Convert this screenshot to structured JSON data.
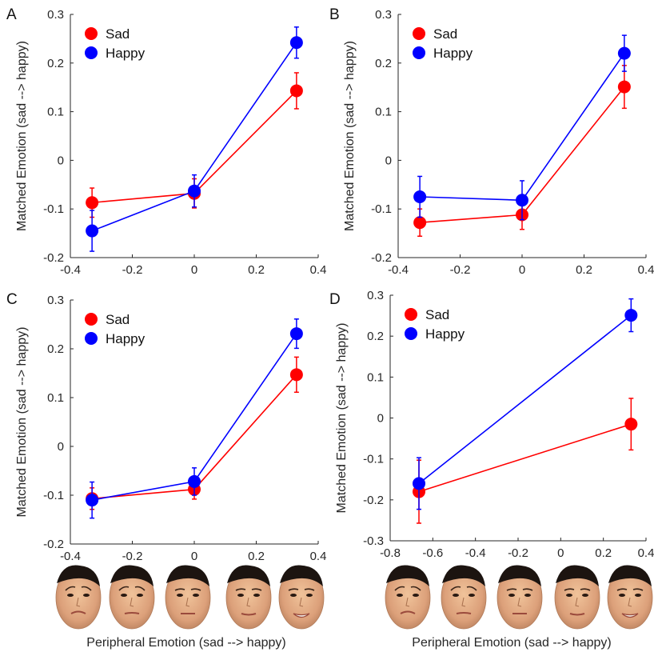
{
  "colors": {
    "Sad": "#ff0000",
    "Happy": "#0000ff",
    "axis": "#262626"
  },
  "chart_data": [
    {
      "type": "line",
      "panel_label": "A",
      "xlabel": "",
      "ylabel": "Matched Emotion (sad --> happy)",
      "xlim": [
        -0.4,
        0.4
      ],
      "ylim": [
        -0.2,
        0.3
      ],
      "xticks": [
        "-0.4",
        "-0.2",
        "0",
        "0.2",
        "0.4"
      ],
      "yticks": [
        "-0.2",
        "-0.1",
        "0",
        "0.1",
        "0.2",
        "0.3"
      ],
      "legend": "top-left",
      "series": [
        {
          "name": "Sad",
          "x": [
            -0.33,
            0.0,
            0.33
          ],
          "y": [
            -0.087,
            -0.068,
            0.143
          ],
          "err": [
            0.03,
            0.03,
            0.037
          ]
        },
        {
          "name": "Happy",
          "x": [
            -0.33,
            0.0,
            0.33
          ],
          "y": [
            -0.145,
            -0.063,
            0.242
          ],
          "err": [
            0.042,
            0.033,
            0.032
          ]
        }
      ]
    },
    {
      "type": "line",
      "panel_label": "B",
      "xlabel": "",
      "ylabel": "Matched Emotion (sad --> happy)",
      "xlim": [
        -0.4,
        0.4
      ],
      "ylim": [
        -0.2,
        0.3
      ],
      "xticks": [
        "-0.4",
        "-0.2",
        "0",
        "0.2",
        "0.4"
      ],
      "yticks": [
        "-0.2",
        "-0.1",
        "0",
        "0.1",
        "0.2",
        "0.3"
      ],
      "legend": "top-left",
      "series": [
        {
          "name": "Sad",
          "x": [
            -0.33,
            0.0,
            0.33
          ],
          "y": [
            -0.128,
            -0.112,
            0.151
          ],
          "err": [
            0.028,
            0.03,
            0.044
          ]
        },
        {
          "name": "Happy",
          "x": [
            -0.33,
            0.0,
            0.33
          ],
          "y": [
            -0.075,
            -0.082,
            0.22
          ],
          "err": [
            0.042,
            0.04,
            0.037
          ]
        }
      ]
    },
    {
      "type": "line",
      "panel_label": "C",
      "xlabel": "",
      "ylabel": "Matched Emotion (sad --> happy)",
      "xlim": [
        -0.4,
        0.4
      ],
      "ylim": [
        -0.2,
        0.3
      ],
      "xticks": [
        "-0.4",
        "-0.2",
        "0",
        "0.2",
        "0.4"
      ],
      "yticks": [
        "-0.2",
        "-0.1",
        "0",
        "0.1",
        "0.2",
        "0.3"
      ],
      "legend": "top-left",
      "series": [
        {
          "name": "Sad",
          "x": [
            -0.33,
            0.0,
            0.33
          ],
          "y": [
            -0.107,
            -0.088,
            0.147
          ],
          "err": [
            0.022,
            0.02,
            0.036
          ]
        },
        {
          "name": "Happy",
          "x": [
            -0.33,
            0.0,
            0.33
          ],
          "y": [
            -0.11,
            -0.072,
            0.231
          ],
          "err": [
            0.037,
            0.028,
            0.03
          ]
        }
      ]
    },
    {
      "type": "line",
      "panel_label": "D",
      "xlabel": "",
      "ylabel": "Matched Emotion (sad --> happy)",
      "xlim": [
        -0.8,
        0.4
      ],
      "ylim": [
        -0.3,
        0.3
      ],
      "xticks": [
        "-0.8",
        "-0.6",
        "-0.4",
        "-0.2",
        "0",
        "0.2",
        "0.4"
      ],
      "yticks": [
        "-0.3",
        "-0.2",
        "-0.1",
        "0",
        "0.1",
        "0.2",
        "0.3"
      ],
      "legend": "top-left",
      "series": [
        {
          "name": "Sad",
          "x": [
            -0.665,
            0.33
          ],
          "y": [
            -0.18,
            -0.015
          ],
          "err": [
            0.077,
            0.063
          ]
        },
        {
          "name": "Happy",
          "x": [
            -0.665,
            0.33
          ],
          "y": [
            -0.16,
            0.251
          ],
          "err": [
            0.063,
            0.04
          ]
        }
      ]
    }
  ],
  "bottom_xlabels": [
    "Peripheral Emotion (sad --> happy)",
    "Peripheral Emotion (sad --> happy)"
  ],
  "face_strips": [
    {
      "emotions": [
        "sad",
        "sad-mild",
        "neutral",
        "happy-mild",
        "happy"
      ]
    },
    {
      "emotions": [
        "sad",
        "sad-mild",
        "neutral",
        "happy-mild",
        "happy"
      ]
    }
  ]
}
